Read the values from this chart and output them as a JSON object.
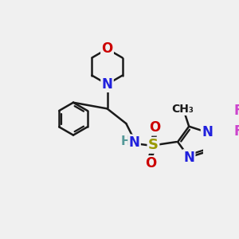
{
  "bg_color": "#f0f0f0",
  "bond_color": "#1a1a1a",
  "N_color": "#2020dd",
  "O_color": "#cc0000",
  "S_color": "#999900",
  "F_color": "#cc44cc",
  "H_color": "#559999",
  "line_width": 1.8,
  "font_size": 11,
  "figsize": [
    3.0,
    3.0
  ],
  "dpi": 100,
  "xlim": [
    0,
    300
  ],
  "ylim": [
    0,
    300
  ]
}
